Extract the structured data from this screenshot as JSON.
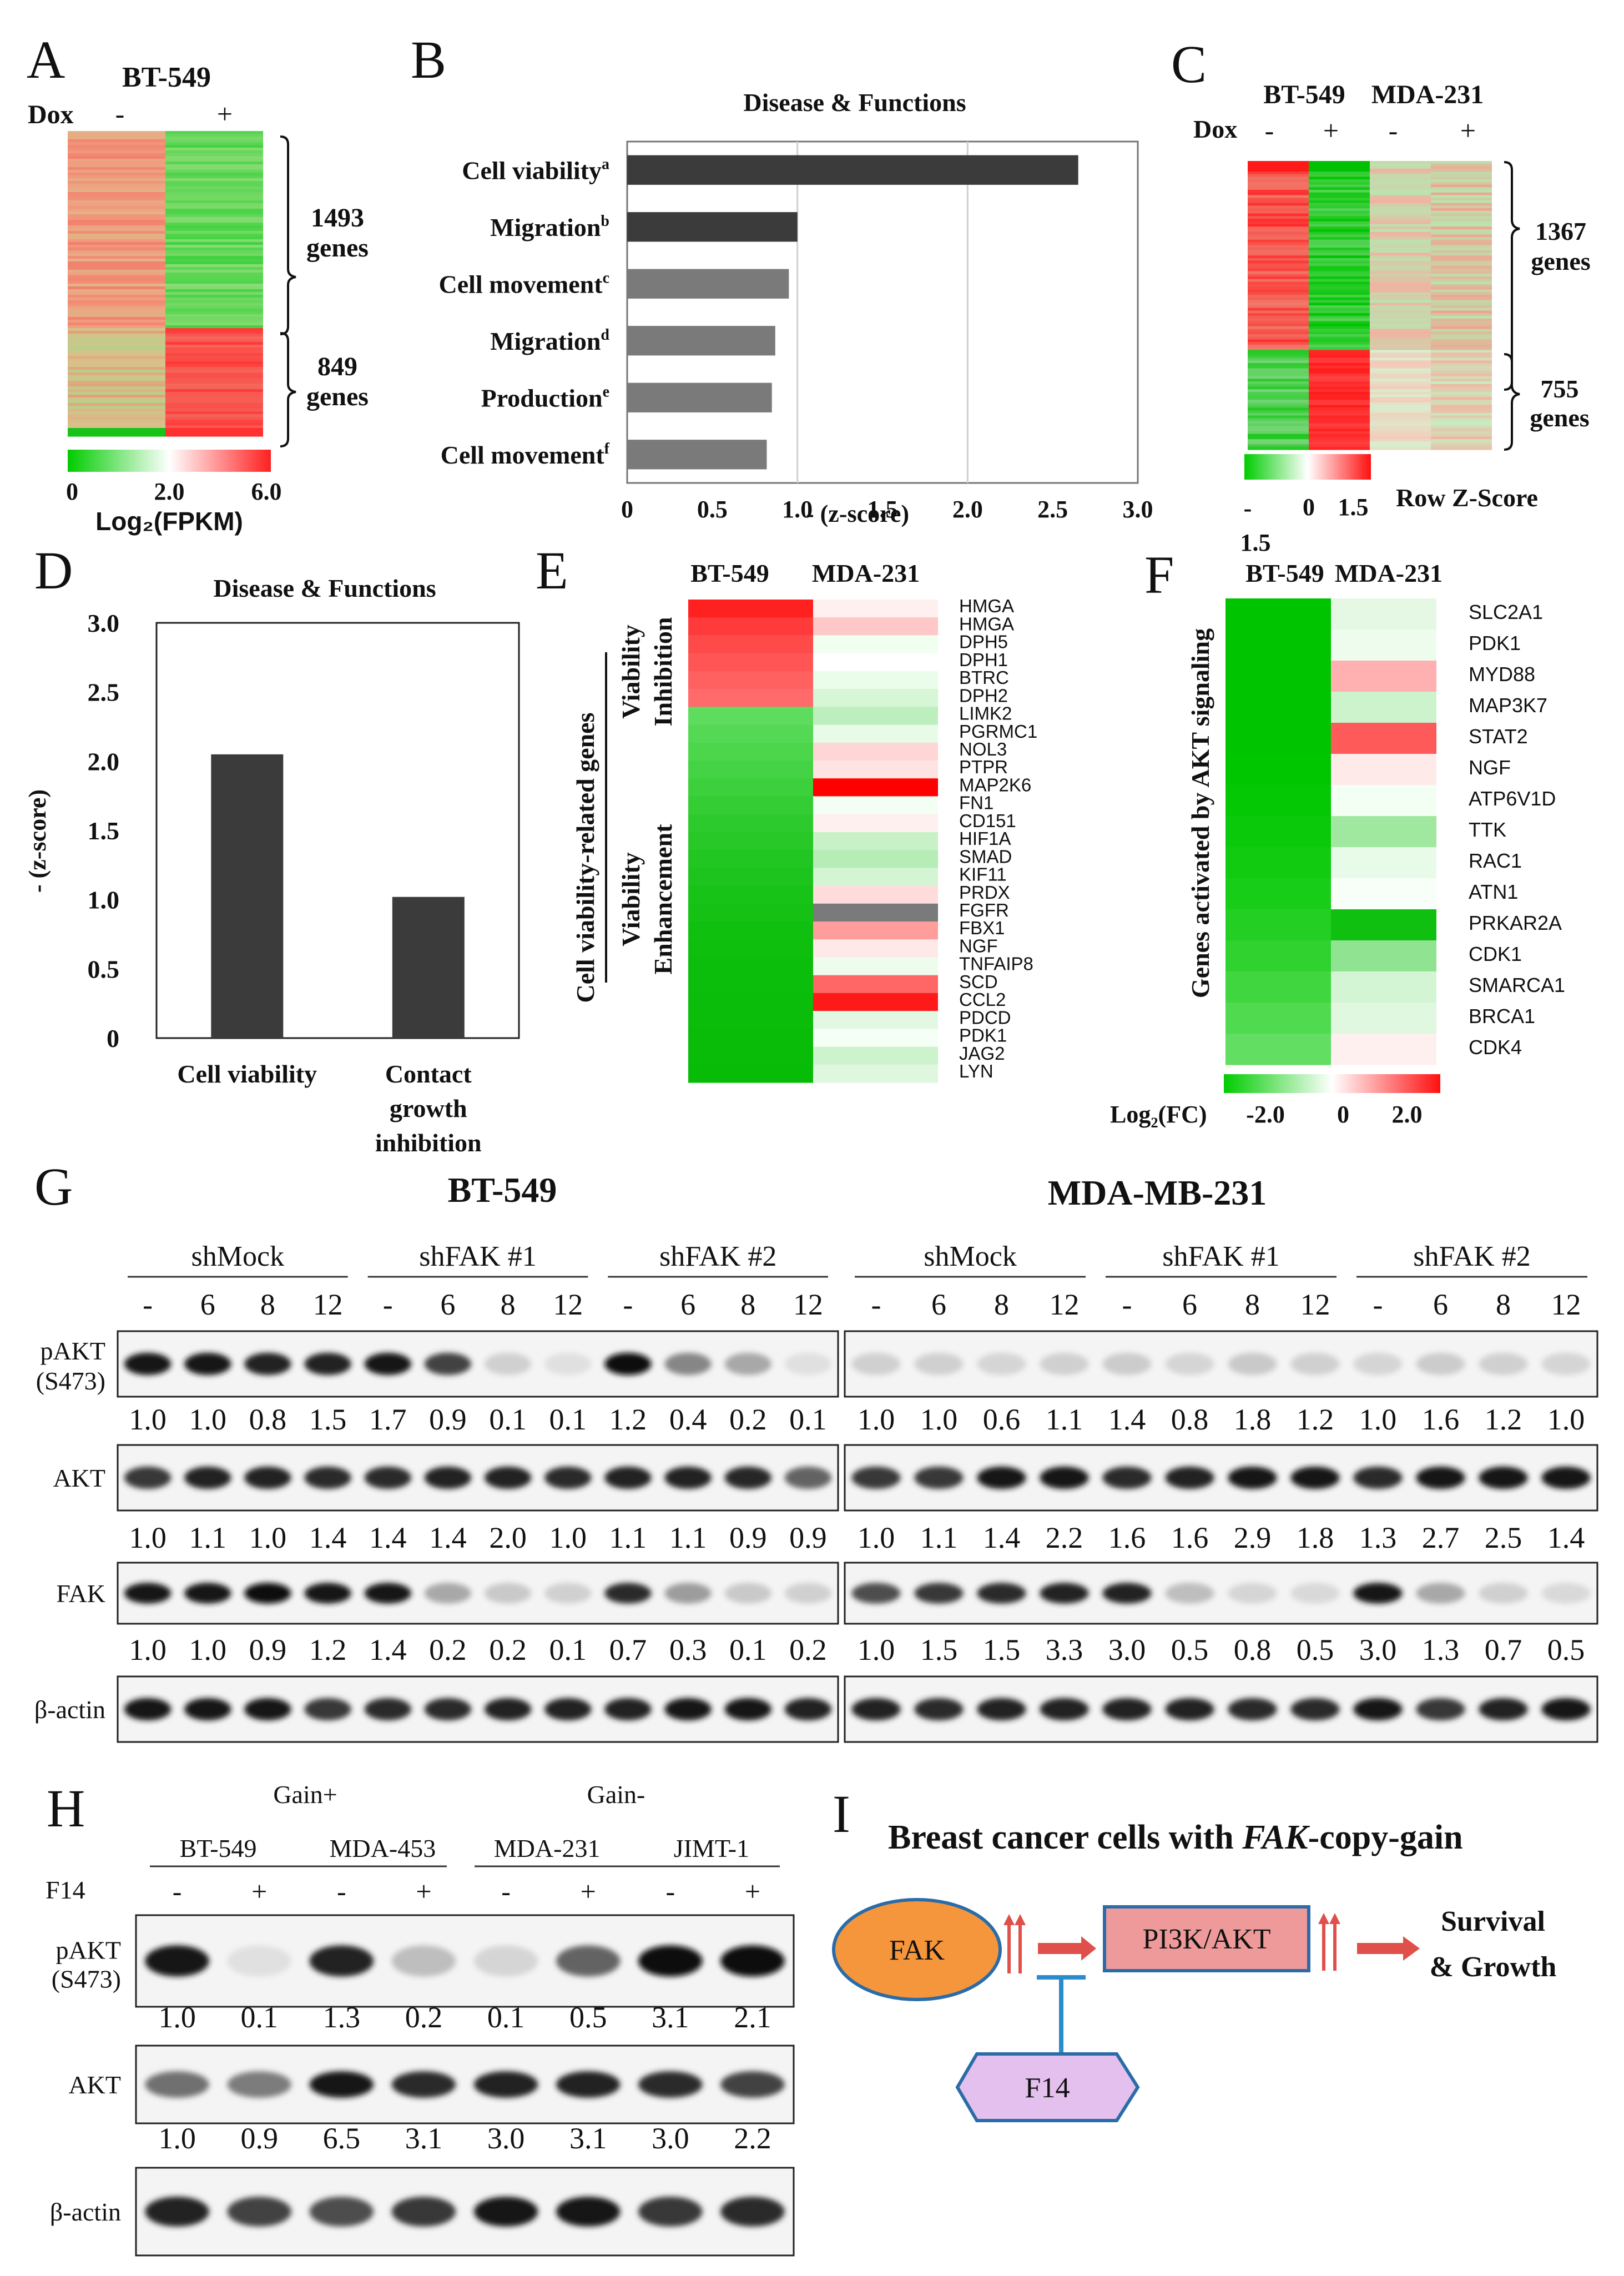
{
  "panels": {
    "A": "A",
    "B": "B",
    "C": "C",
    "D": "D",
    "E": "E",
    "F": "F",
    "G": "G",
    "H": "H",
    "I": "I"
  },
  "panel_a": {
    "title": "BT-549",
    "dox_label": "Dox",
    "cols": [
      "-",
      "+"
    ],
    "group1_count": "1493",
    "group1_word": "genes",
    "group2_count": "849",
    "group2_word": "genes",
    "scale_ticks": [
      "0",
      "2.0",
      "6.0"
    ],
    "scale_label": "Log₂(FPKM)",
    "colors": {
      "low": "#00cc00",
      "mid": "#ffffff",
      "high": "#ff2a2a"
    }
  },
  "panel_b_chart": {
    "type": "bar",
    "orientation": "horizontal",
    "title": "Disease & Functions",
    "categories": [
      "Cell viability",
      "Migration",
      "Cell movement",
      "Migration",
      "Production",
      "Cell movement"
    ],
    "superscripts": [
      "a",
      "b",
      "c",
      "d",
      "e",
      "f"
    ],
    "values": [
      2.65,
      1.0,
      0.95,
      0.87,
      0.85,
      0.82
    ],
    "bar_colors": [
      "#3b3b3b",
      "#3b3b3b",
      "#7a7a7a",
      "#7a7a7a",
      "#7a7a7a",
      "#7a7a7a"
    ],
    "xlim": [
      0,
      3.0
    ],
    "ticks": [
      "0",
      "0.5",
      "1.0",
      "1.5",
      "2.0",
      "2.5",
      "3.0"
    ],
    "xlabel": "- (z-score)"
  },
  "panel_c": {
    "cell_lines": [
      "BT-549",
      "MDA-231"
    ],
    "dox_label": "Dox",
    "cols": [
      "-",
      "+",
      "-",
      "+"
    ],
    "group1_count": "1367",
    "group1_word": "genes",
    "group2_count": "755",
    "group2_word": "genes",
    "scale_ticks": [
      "-",
      "0",
      "1.5"
    ],
    "scale_below": "1.5",
    "scale_label": "Row Z-Score"
  },
  "panel_d_chart": {
    "type": "bar",
    "title": "Disease & Functions",
    "categories": [
      "Cell viability",
      "Contact growth inhibition"
    ],
    "category_lines": [
      [
        "Cell viability"
      ],
      [
        "Contact",
        "growth",
        "inhibition"
      ]
    ],
    "values": [
      2.05,
      1.02
    ],
    "ylim": [
      0,
      3.0
    ],
    "ticks": [
      "0",
      "0.5",
      "1.0",
      "1.5",
      "2.0",
      "2.5",
      "3.0"
    ],
    "ylabel": "- (z-score)",
    "bar_color": "#3b3b3b"
  },
  "panel_e": {
    "cell_lines": [
      "BT-549",
      "MDA-231"
    ],
    "side_label": "Cell viability-related genes",
    "group1": [
      "Viability",
      "Inhibition"
    ],
    "group2": [
      "Viability",
      "Enhancement"
    ],
    "genes": [
      "HMGA",
      "HMGA",
      "DPH5",
      "DPH1",
      "BTRC",
      "DPH2",
      "LIMK2",
      "PGRMC1",
      "NOL3",
      "PTPR",
      "MAP2K6",
      "FN1",
      "CD151",
      "HIF1A",
      "SMAD",
      "KIF11",
      "PRDX",
      "FGFR",
      "FBX1",
      "NGF",
      "TNFAIP8",
      "SCD",
      "CCL2",
      "PDCD",
      "PDK1",
      "JAG2",
      "LYN"
    ],
    "col1": [
      "#ff2020",
      "#ff3a3a",
      "#ff4a4a",
      "#ff5555",
      "#ff6060",
      "#ff6a6a",
      "#5ddc5d",
      "#55d955",
      "#4cd64c",
      "#44d344",
      "#3cd03c",
      "#34cd34",
      "#2dca2d",
      "#27c827",
      "#22c622",
      "#1dc41d",
      "#18c318",
      "#14c114",
      "#10c010",
      "#0ebf0e",
      "#0cbe0c",
      "#0bbe0b",
      "#0abd0a",
      "#09bd09",
      "#08bc08",
      "#08bc08",
      "#07bc07"
    ],
    "col2": [
      "#fff0f0",
      "#ffc8c8",
      "#f0fff0",
      "#ffffff",
      "#eafcea",
      "#d6f6d6",
      "#bdeebd",
      "#e8fbe8",
      "#ffd6d6",
      "#ffe2e2",
      "#ff0000",
      "#f4fff4",
      "#fff0f0",
      "#c8f1c8",
      "#b6ecb6",
      "#d4f5d4",
      "#ffdcdc",
      "#7a7a7a",
      "#ff9d9d",
      "#ffe8e8",
      "#eefcee",
      "#ff6666",
      "#ff1a1a",
      "#e2f8e2",
      "#f6fff6",
      "#ccf3cc",
      "#dff7df"
    ]
  },
  "panel_f": {
    "cell_lines": [
      "BT-549",
      "MDA-231"
    ],
    "side_label": "Genes activated by AKT signaling",
    "genes": [
      "SLC2A1",
      "PDK1",
      "MYD88",
      "MAP3K7",
      "STAT2",
      "NGF",
      "ATP6V1D",
      "TTK",
      "RAC1",
      "ATN1",
      "PRKAR2A",
      "CDK1",
      "SMARCA1",
      "BRCA1",
      "CDK4"
    ],
    "col1": [
      "#00c400",
      "#00c400",
      "#00c400",
      "#00c400",
      "#00c400",
      "#00c600",
      "#05c805",
      "#0ac90a",
      "#10cb10",
      "#18cd18",
      "#22cf22",
      "#30d230",
      "#3fd63f",
      "#50da50",
      "#62de62"
    ],
    "col2": [
      "#e4f8e4",
      "#eefcee",
      "#ffb0b0",
      "#ccf3cc",
      "#ff5a5a",
      "#ffeaea",
      "#f4fff4",
      "#a0e8a0",
      "#e8fbe8",
      "#f8fff8",
      "#10c010",
      "#90e390",
      "#d4f5d4",
      "#e0f8e0",
      "#fff0f0"
    ],
    "scale_label": "Log₂(FC)",
    "scale_ticks": [
      "-2.0",
      "0",
      "2.0"
    ]
  },
  "panel_g": {
    "cell_lines": [
      "BT-549",
      "MDA-MB-231"
    ],
    "groups": [
      "shMock",
      "shFAK #1",
      "shFAK #2"
    ],
    "timepoints": [
      "-",
      "6",
      "8",
      "12"
    ],
    "blots": [
      {
        "label": [
          "pAKT",
          "(S473)"
        ],
        "values": [
          "1.0",
          "1.0",
          "0.8",
          "1.5",
          "1.7",
          "0.9",
          "0.1",
          "0.1",
          "1.2",
          "0.4",
          "0.2",
          "0.1",
          "1.0",
          "1.0",
          "0.6",
          "1.1",
          "1.4",
          "0.8",
          "1.8",
          "1.2",
          "1.0",
          "1.6",
          "1.2",
          "1.0"
        ],
        "intensity": [
          0.95,
          0.95,
          0.9,
          0.9,
          0.95,
          0.75,
          0.12,
          0.05,
          1.0,
          0.45,
          0.3,
          0.05,
          0.12,
          0.12,
          0.1,
          0.12,
          0.14,
          0.1,
          0.15,
          0.12,
          0.1,
          0.14,
          0.12,
          0.1
        ]
      },
      {
        "label": [
          "AKT"
        ],
        "values": [
          "1.0",
          "1.1",
          "1.0",
          "1.4",
          "1.4",
          "1.4",
          "2.0",
          "1.0",
          "1.1",
          "1.1",
          "0.9",
          "0.9",
          "1.0",
          "1.1",
          "1.4",
          "2.2",
          "1.6",
          "1.6",
          "2.9",
          "1.8",
          "1.3",
          "2.7",
          "2.5",
          "1.4"
        ],
        "intensity": [
          0.8,
          0.9,
          0.9,
          0.85,
          0.85,
          0.9,
          0.9,
          0.85,
          0.9,
          0.9,
          0.88,
          0.6,
          0.8,
          0.8,
          0.95,
          0.95,
          0.85,
          0.9,
          0.95,
          0.95,
          0.85,
          0.95,
          0.95,
          0.95
        ]
      },
      {
        "label": [
          "FAK"
        ],
        "values": [
          "1.0",
          "1.0",
          "0.9",
          "1.2",
          "1.4",
          "0.2",
          "0.2",
          "0.1",
          "0.7",
          "0.3",
          "0.1",
          "0.2",
          "1.0",
          "1.5",
          "1.5",
          "3.3",
          "3.0",
          "0.5",
          "0.8",
          "0.5",
          "3.0",
          "1.3",
          "0.7",
          "0.5"
        ],
        "intensity": [
          0.95,
          0.95,
          1.0,
          0.95,
          0.95,
          0.3,
          0.15,
          0.12,
          0.85,
          0.35,
          0.15,
          0.12,
          0.7,
          0.8,
          0.85,
          0.9,
          0.9,
          0.2,
          0.1,
          0.08,
          0.95,
          0.3,
          0.12,
          0.08
        ]
      },
      {
        "label": [
          "β-actin"
        ],
        "values": [],
        "intensity": [
          0.95,
          0.95,
          0.95,
          0.8,
          0.85,
          0.85,
          0.9,
          0.9,
          0.9,
          0.95,
          0.95,
          0.9,
          0.9,
          0.85,
          0.9,
          0.9,
          0.9,
          0.9,
          0.85,
          0.85,
          0.95,
          0.8,
          0.9,
          0.95
        ]
      }
    ]
  },
  "panel_h": {
    "gain_pos": "Gain+",
    "gain_neg": "Gain-",
    "cell_lines": [
      "BT-549",
      "MDA-453",
      "MDA-231",
      "JIMT-1"
    ],
    "treat_label": "F14",
    "treatments": [
      "-",
      "+",
      "-",
      "+",
      "-",
      "+",
      "-",
      "+"
    ],
    "blots": [
      {
        "label": [
          "pAKT",
          "(S473)"
        ],
        "values": [
          "1.0",
          "0.1",
          "1.3",
          "0.2",
          "0.1",
          "0.5",
          "3.1",
          "2.1"
        ],
        "intensity": [
          0.95,
          0.05,
          0.9,
          0.2,
          0.1,
          0.6,
          1.0,
          1.0
        ]
      },
      {
        "label": [
          "AKT"
        ],
        "values": [
          "1.0",
          "0.9",
          "6.5",
          "3.1",
          "3.0",
          "3.1",
          "3.0",
          "2.2"
        ],
        "intensity": [
          0.55,
          0.5,
          0.95,
          0.85,
          0.9,
          0.9,
          0.85,
          0.75
        ]
      },
      {
        "label": [
          "β-actin"
        ],
        "values": [],
        "intensity": [
          0.9,
          0.75,
          0.7,
          0.8,
          0.95,
          0.95,
          0.8,
          0.85
        ]
      }
    ]
  },
  "panel_i": {
    "title_prefix": "Breast cancer cells with ",
    "title_gene": "FAK",
    "title_suffix": "-copy-gain",
    "fak": "FAK",
    "pathway": "PI3K/AKT",
    "inhibitor": "F14",
    "outcome": [
      "Survival",
      "& Growth"
    ],
    "colors": {
      "fak": "#f5963c",
      "pathway": "#ee9a9a",
      "inhibitor": "#e3c0ee",
      "arrow": "#e0504a",
      "inhibit": "#2a8ccc"
    }
  }
}
